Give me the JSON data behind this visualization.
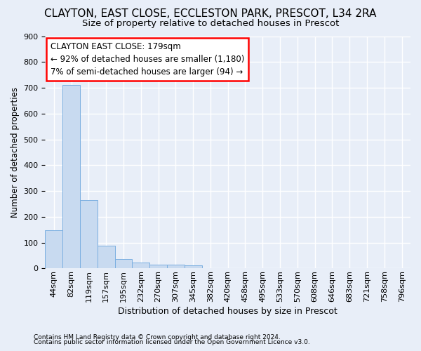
{
  "title": "CLAYTON, EAST CLOSE, ECCLESTON PARK, PRESCOT, L34 2RA",
  "subtitle": "Size of property relative to detached houses in Prescot",
  "xlabel": "Distribution of detached houses by size in Prescot",
  "ylabel": "Number of detached properties",
  "footnote1": "Contains HM Land Registry data © Crown copyright and database right 2024.",
  "footnote2": "Contains public sector information licensed under the Open Government Licence v3.0.",
  "bin_labels": [
    "44sqm",
    "82sqm",
    "119sqm",
    "157sqm",
    "195sqm",
    "232sqm",
    "270sqm",
    "307sqm",
    "345sqm",
    "382sqm",
    "420sqm",
    "458sqm",
    "495sqm",
    "533sqm",
    "570sqm",
    "608sqm",
    "646sqm",
    "683sqm",
    "721sqm",
    "758sqm",
    "796sqm"
  ],
  "bar_values": [
    148,
    710,
    265,
    87,
    36,
    22,
    13,
    13,
    11,
    0,
    0,
    0,
    0,
    0,
    0,
    0,
    0,
    0,
    0,
    0,
    0
  ],
  "bar_color": "#c8daf0",
  "bar_edgecolor": "#7aaee0",
  "annotation_lines": [
    "CLAYTON EAST CLOSE: 179sqm",
    "← 92% of detached houses are smaller (1,180)",
    "7% of semi-detached houses are larger (94) →"
  ],
  "annotation_edge_color": "red",
  "annotation_bg": "white",
  "ylim": [
    0,
    900
  ],
  "yticks": [
    0,
    100,
    200,
    300,
    400,
    500,
    600,
    700,
    800,
    900
  ],
  "bg_color": "#e8eef8",
  "plot_bg_color": "#e8eef8",
  "grid_color": "white",
  "title_fontsize": 11,
  "subtitle_fontsize": 9.5,
  "xlabel_fontsize": 9,
  "ylabel_fontsize": 8.5,
  "tick_fontsize": 8,
  "ann_fontsize": 8.5,
  "footnote_fontsize": 6.5
}
